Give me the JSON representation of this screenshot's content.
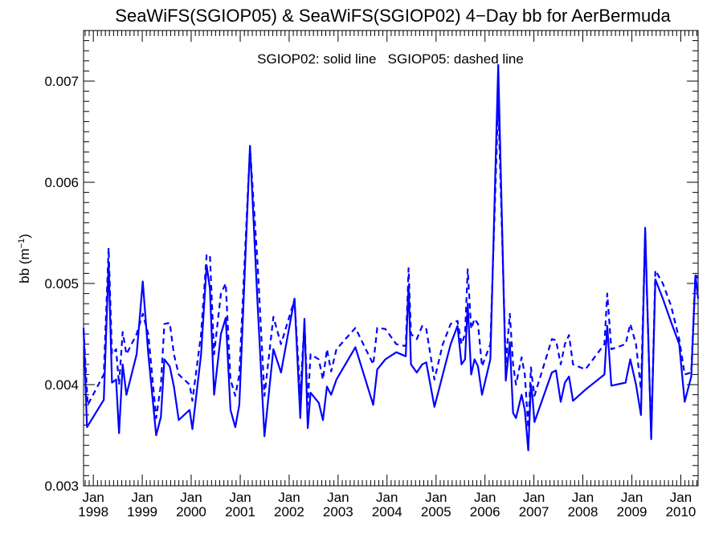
{
  "chart_data": {
    "type": "line",
    "title": "SeaWiFS(SGIOP05) & SeaWiFS(SGIOP02) 4−Day bb for AerBermuda",
    "legend_text": "SGIOP02: solid line   SGIOP05: dashed line",
    "ylabel": "bb (m",
    "ylabel_sup": "−1",
    "ylabel_close": ")",
    "ylim": [
      0.003,
      0.0075
    ],
    "xlim": [
      "1997-10-20",
      "2010-05-10"
    ],
    "yticks": [
      "0.003",
      "0.004",
      "0.005",
      "0.006",
      "0.007"
    ],
    "xticks": [
      {
        "top": "Jan",
        "bottom": "1998",
        "date": "1998-01-01"
      },
      {
        "top": "Jan",
        "bottom": "1999",
        "date": "1999-01-01"
      },
      {
        "top": "Jan",
        "bottom": "2000",
        "date": "2000-01-01"
      },
      {
        "top": "Jan",
        "bottom": "2001",
        "date": "2001-01-01"
      },
      {
        "top": "Jan",
        "bottom": "2002",
        "date": "2002-01-01"
      },
      {
        "top": "Jan",
        "bottom": "2003",
        "date": "2003-01-01"
      },
      {
        "top": "Jan",
        "bottom": "2004",
        "date": "2004-01-01"
      },
      {
        "top": "Jan",
        "bottom": "2005",
        "date": "2005-01-01"
      },
      {
        "top": "Jan",
        "bottom": "2006",
        "date": "2006-01-01"
      },
      {
        "top": "Jan",
        "bottom": "2007",
        "date": "2007-01-01"
      },
      {
        "top": "Jan",
        "bottom": "2008",
        "date": "2008-01-01"
      },
      {
        "top": "Jan",
        "bottom": "2009",
        "date": "2009-01-01"
      },
      {
        "top": "Jan",
        "bottom": "2010",
        "date": "2010-01-01"
      }
    ],
    "line_color": "#0000ff",
    "grid": false,
    "series": [
      {
        "style": "solid",
        "points": [
          [
            "1997-10-20",
            0.00456
          ],
          [
            "1997-11-15",
            0.00358
          ],
          [
            "1998-03-20",
            0.00385
          ],
          [
            "1998-04-25",
            0.0052
          ],
          [
            "1998-05-20",
            0.00402
          ],
          [
            "1998-06-20",
            0.00405
          ],
          [
            "1998-07-12",
            0.00352
          ],
          [
            "1998-08-08",
            0.0042
          ],
          [
            "1998-09-05",
            0.0039
          ],
          [
            "1998-11-20",
            0.0043
          ],
          [
            "1999-01-05",
            0.00502
          ],
          [
            "1999-02-15",
            0.0043
          ],
          [
            "1999-04-15",
            0.0035
          ],
          [
            "1999-05-20",
            0.00368
          ],
          [
            "1999-06-15",
            0.00425
          ],
          [
            "1999-07-25",
            0.00418
          ],
          [
            "1999-08-25",
            0.00398
          ],
          [
            "1999-09-30",
            0.00365
          ],
          [
            "1999-12-20",
            0.00375
          ],
          [
            "2000-01-10",
            0.00356
          ],
          [
            "2000-03-15",
            0.0043
          ],
          [
            "2000-04-25",
            0.00518
          ],
          [
            "2000-05-20",
            0.00495
          ],
          [
            "2000-06-20",
            0.0039
          ],
          [
            "2000-08-10",
            0.0045
          ],
          [
            "2000-09-15",
            0.00466
          ],
          [
            "2000-10-20",
            0.00375
          ],
          [
            "2000-11-25",
            0.00358
          ],
          [
            "2000-12-25",
            0.0038
          ],
          [
            "2001-03-15",
            0.00636
          ],
          [
            "2001-05-10",
            0.0048
          ],
          [
            "2001-07-01",
            0.00349
          ],
          [
            "2001-09-05",
            0.00435
          ],
          [
            "2001-11-01",
            0.00412
          ],
          [
            "2002-02-10",
            0.00485
          ],
          [
            "2002-03-25",
            0.00367
          ],
          [
            "2002-04-25",
            0.00465
          ],
          [
            "2002-05-20",
            0.00357
          ],
          [
            "2002-06-10",
            0.00392
          ],
          [
            "2002-08-10",
            0.00382
          ],
          [
            "2002-09-10",
            0.00365
          ],
          [
            "2002-10-10",
            0.00398
          ],
          [
            "2002-11-10",
            0.0039
          ],
          [
            "2002-12-20",
            0.00405
          ],
          [
            "2003-05-10",
            0.00437
          ],
          [
            "2003-09-20",
            0.0038
          ],
          [
            "2003-10-20",
            0.00415
          ],
          [
            "2003-12-20",
            0.00425
          ],
          [
            "2004-03-10",
            0.00432
          ],
          [
            "2004-05-20",
            0.00428
          ],
          [
            "2004-06-10",
            0.00498
          ],
          [
            "2004-06-28",
            0.0042
          ],
          [
            "2004-08-10",
            0.00412
          ],
          [
            "2004-09-20",
            0.0042
          ],
          [
            "2004-10-20",
            0.00422
          ],
          [
            "2004-12-20",
            0.00378
          ],
          [
            "2005-02-20",
            0.0041
          ],
          [
            "2005-04-20",
            0.0044
          ],
          [
            "2005-06-10",
            0.00458
          ],
          [
            "2005-07-10",
            0.0042
          ],
          [
            "2005-08-05",
            0.00425
          ],
          [
            "2005-08-25",
            0.0048
          ],
          [
            "2005-09-20",
            0.0041
          ],
          [
            "2005-10-15",
            0.00425
          ],
          [
            "2005-11-10",
            0.00418
          ],
          [
            "2005-12-10",
            0.0039
          ],
          [
            "2006-02-10",
            0.00425
          ],
          [
            "2006-04-10",
            0.00716
          ],
          [
            "2006-06-05",
            0.00404
          ],
          [
            "2006-07-05",
            0.00442
          ],
          [
            "2006-07-30",
            0.00372
          ],
          [
            "2006-08-20",
            0.00367
          ],
          [
            "2006-10-01",
            0.0039
          ],
          [
            "2006-10-25",
            0.00375
          ],
          [
            "2006-11-20",
            0.00335
          ],
          [
            "2006-12-10",
            0.004
          ],
          [
            "2006-12-20",
            0.0039
          ],
          [
            "2007-01-05",
            0.00363
          ],
          [
            "2007-05-15",
            0.00412
          ],
          [
            "2007-06-15",
            0.00414
          ],
          [
            "2007-07-20",
            0.00383
          ],
          [
            "2007-08-20",
            0.00402
          ],
          [
            "2007-09-20",
            0.00408
          ],
          [
            "2007-10-20",
            0.00384
          ],
          [
            "2008-01-20",
            0.00395
          ],
          [
            "2008-06-10",
            0.0041
          ],
          [
            "2008-07-01",
            0.00458
          ],
          [
            "2008-08-01",
            0.00399
          ],
          [
            "2008-11-15",
            0.00402
          ],
          [
            "2008-12-20",
            0.00425
          ],
          [
            "2009-02-01",
            0.004
          ],
          [
            "2009-03-10",
            0.0037
          ],
          [
            "2009-04-10",
            0.00555
          ],
          [
            "2009-05-25",
            0.00346
          ],
          [
            "2009-06-25",
            0.00504
          ],
          [
            "2009-08-20",
            0.00485
          ],
          [
            "2009-10-20",
            0.00462
          ],
          [
            "2009-12-20",
            0.0044
          ],
          [
            "2010-01-30",
            0.00383
          ],
          [
            "2010-03-20",
            0.00408
          ],
          [
            "2010-04-20",
            0.00508
          ],
          [
            "2010-05-10",
            0.00485
          ]
        ]
      },
      {
        "style": "dashed",
        "points": [
          [
            "1997-10-20",
            0.00455
          ],
          [
            "1997-11-20",
            0.0038
          ],
          [
            "1998-03-20",
            0.0041
          ],
          [
            "1998-04-25",
            0.00535
          ],
          [
            "1998-05-20",
            0.0043
          ],
          [
            "1998-06-20",
            0.00435
          ],
          [
            "1998-07-12",
            0.004
          ],
          [
            "1998-08-08",
            0.00452
          ],
          [
            "1998-09-05",
            0.0043
          ],
          [
            "1998-11-20",
            0.0045
          ],
          [
            "1999-01-05",
            0.0047
          ],
          [
            "1999-02-15",
            0.0045
          ],
          [
            "1999-04-15",
            0.00367
          ],
          [
            "1999-05-20",
            0.004
          ],
          [
            "1999-06-15",
            0.0046
          ],
          [
            "1999-07-25",
            0.00461
          ],
          [
            "1999-08-25",
            0.0043
          ],
          [
            "1999-09-30",
            0.0041
          ],
          [
            "1999-12-20",
            0.004
          ],
          [
            "2000-01-10",
            0.00384
          ],
          [
            "2000-03-15",
            0.0045
          ],
          [
            "2000-04-25",
            0.00528
          ],
          [
            "2000-05-20",
            0.00528
          ],
          [
            "2000-06-20",
            0.0043
          ],
          [
            "2000-08-10",
            0.0049
          ],
          [
            "2000-09-15",
            0.005
          ],
          [
            "2000-10-20",
            0.00405
          ],
          [
            "2000-11-25",
            0.00389
          ],
          [
            "2000-12-25",
            0.0041
          ],
          [
            "2001-03-15",
            0.00635
          ],
          [
            "2001-05-10",
            0.0052
          ],
          [
            "2001-07-01",
            0.00389
          ],
          [
            "2001-09-05",
            0.00467
          ],
          [
            "2001-11-01",
            0.0044
          ],
          [
            "2002-02-10",
            0.00484
          ],
          [
            "2002-03-25",
            0.0039
          ],
          [
            "2002-04-25",
            0.00462
          ],
          [
            "2002-05-20",
            0.0038
          ],
          [
            "2002-06-10",
            0.0043
          ],
          [
            "2002-08-10",
            0.00425
          ],
          [
            "2002-09-10",
            0.00405
          ],
          [
            "2002-10-10",
            0.00435
          ],
          [
            "2002-11-10",
            0.00413
          ],
          [
            "2002-12-20",
            0.00435
          ],
          [
            "2003-05-10",
            0.00456
          ],
          [
            "2003-09-20",
            0.0042
          ],
          [
            "2003-10-20",
            0.00456
          ],
          [
            "2003-12-20",
            0.00455
          ],
          [
            "2004-03-10",
            0.0044
          ],
          [
            "2004-05-20",
            0.00438
          ],
          [
            "2004-06-10",
            0.00515
          ],
          [
            "2004-06-28",
            0.0045
          ],
          [
            "2004-08-10",
            0.00445
          ],
          [
            "2004-09-20",
            0.00458
          ],
          [
            "2004-10-20",
            0.00455
          ],
          [
            "2004-12-20",
            0.00405
          ],
          [
            "2005-02-20",
            0.0044
          ],
          [
            "2005-04-20",
            0.0046
          ],
          [
            "2005-06-10",
            0.00463
          ],
          [
            "2005-07-10",
            0.0044
          ],
          [
            "2005-08-05",
            0.0045
          ],
          [
            "2005-08-25",
            0.00514
          ],
          [
            "2005-09-20",
            0.00455
          ],
          [
            "2005-10-15",
            0.00465
          ],
          [
            "2005-11-10",
            0.0046
          ],
          [
            "2005-12-10",
            0.00418
          ],
          [
            "2006-02-10",
            0.0044
          ],
          [
            "2006-04-10",
            0.0068
          ],
          [
            "2006-06-05",
            0.0042
          ],
          [
            "2006-07-05",
            0.0047
          ],
          [
            "2006-07-30",
            0.0042
          ],
          [
            "2006-08-20",
            0.004
          ],
          [
            "2006-10-01",
            0.00427
          ],
          [
            "2006-10-25",
            0.0041
          ],
          [
            "2006-11-20",
            0.00357
          ],
          [
            "2006-12-10",
            0.00417
          ],
          [
            "2006-12-20",
            0.00405
          ],
          [
            "2007-01-05",
            0.00389
          ],
          [
            "2007-05-15",
            0.00445
          ],
          [
            "2007-06-15",
            0.00444
          ],
          [
            "2007-07-20",
            0.0042
          ],
          [
            "2007-08-20",
            0.0044
          ],
          [
            "2007-09-20",
            0.00449
          ],
          [
            "2007-10-20",
            0.0042
          ],
          [
            "2008-01-20",
            0.00415
          ],
          [
            "2008-06-10",
            0.0044
          ],
          [
            "2008-07-01",
            0.0049
          ],
          [
            "2008-08-01",
            0.00435
          ],
          [
            "2008-11-15",
            0.0044
          ],
          [
            "2008-12-20",
            0.0046
          ],
          [
            "2009-02-01",
            0.0044
          ],
          [
            "2009-03-10",
            0.00395
          ],
          [
            "2009-04-10",
            0.0055
          ],
          [
            "2009-05-25",
            0.00348
          ],
          [
            "2009-06-25",
            0.00513
          ],
          [
            "2009-08-20",
            0.005
          ],
          [
            "2009-10-20",
            0.00478
          ],
          [
            "2009-12-20",
            0.00445
          ],
          [
            "2010-01-30",
            0.0041
          ],
          [
            "2010-03-20",
            0.00412
          ],
          [
            "2010-04-20",
            0.00509
          ],
          [
            "2010-05-10",
            0.00505
          ]
        ]
      }
    ]
  }
}
